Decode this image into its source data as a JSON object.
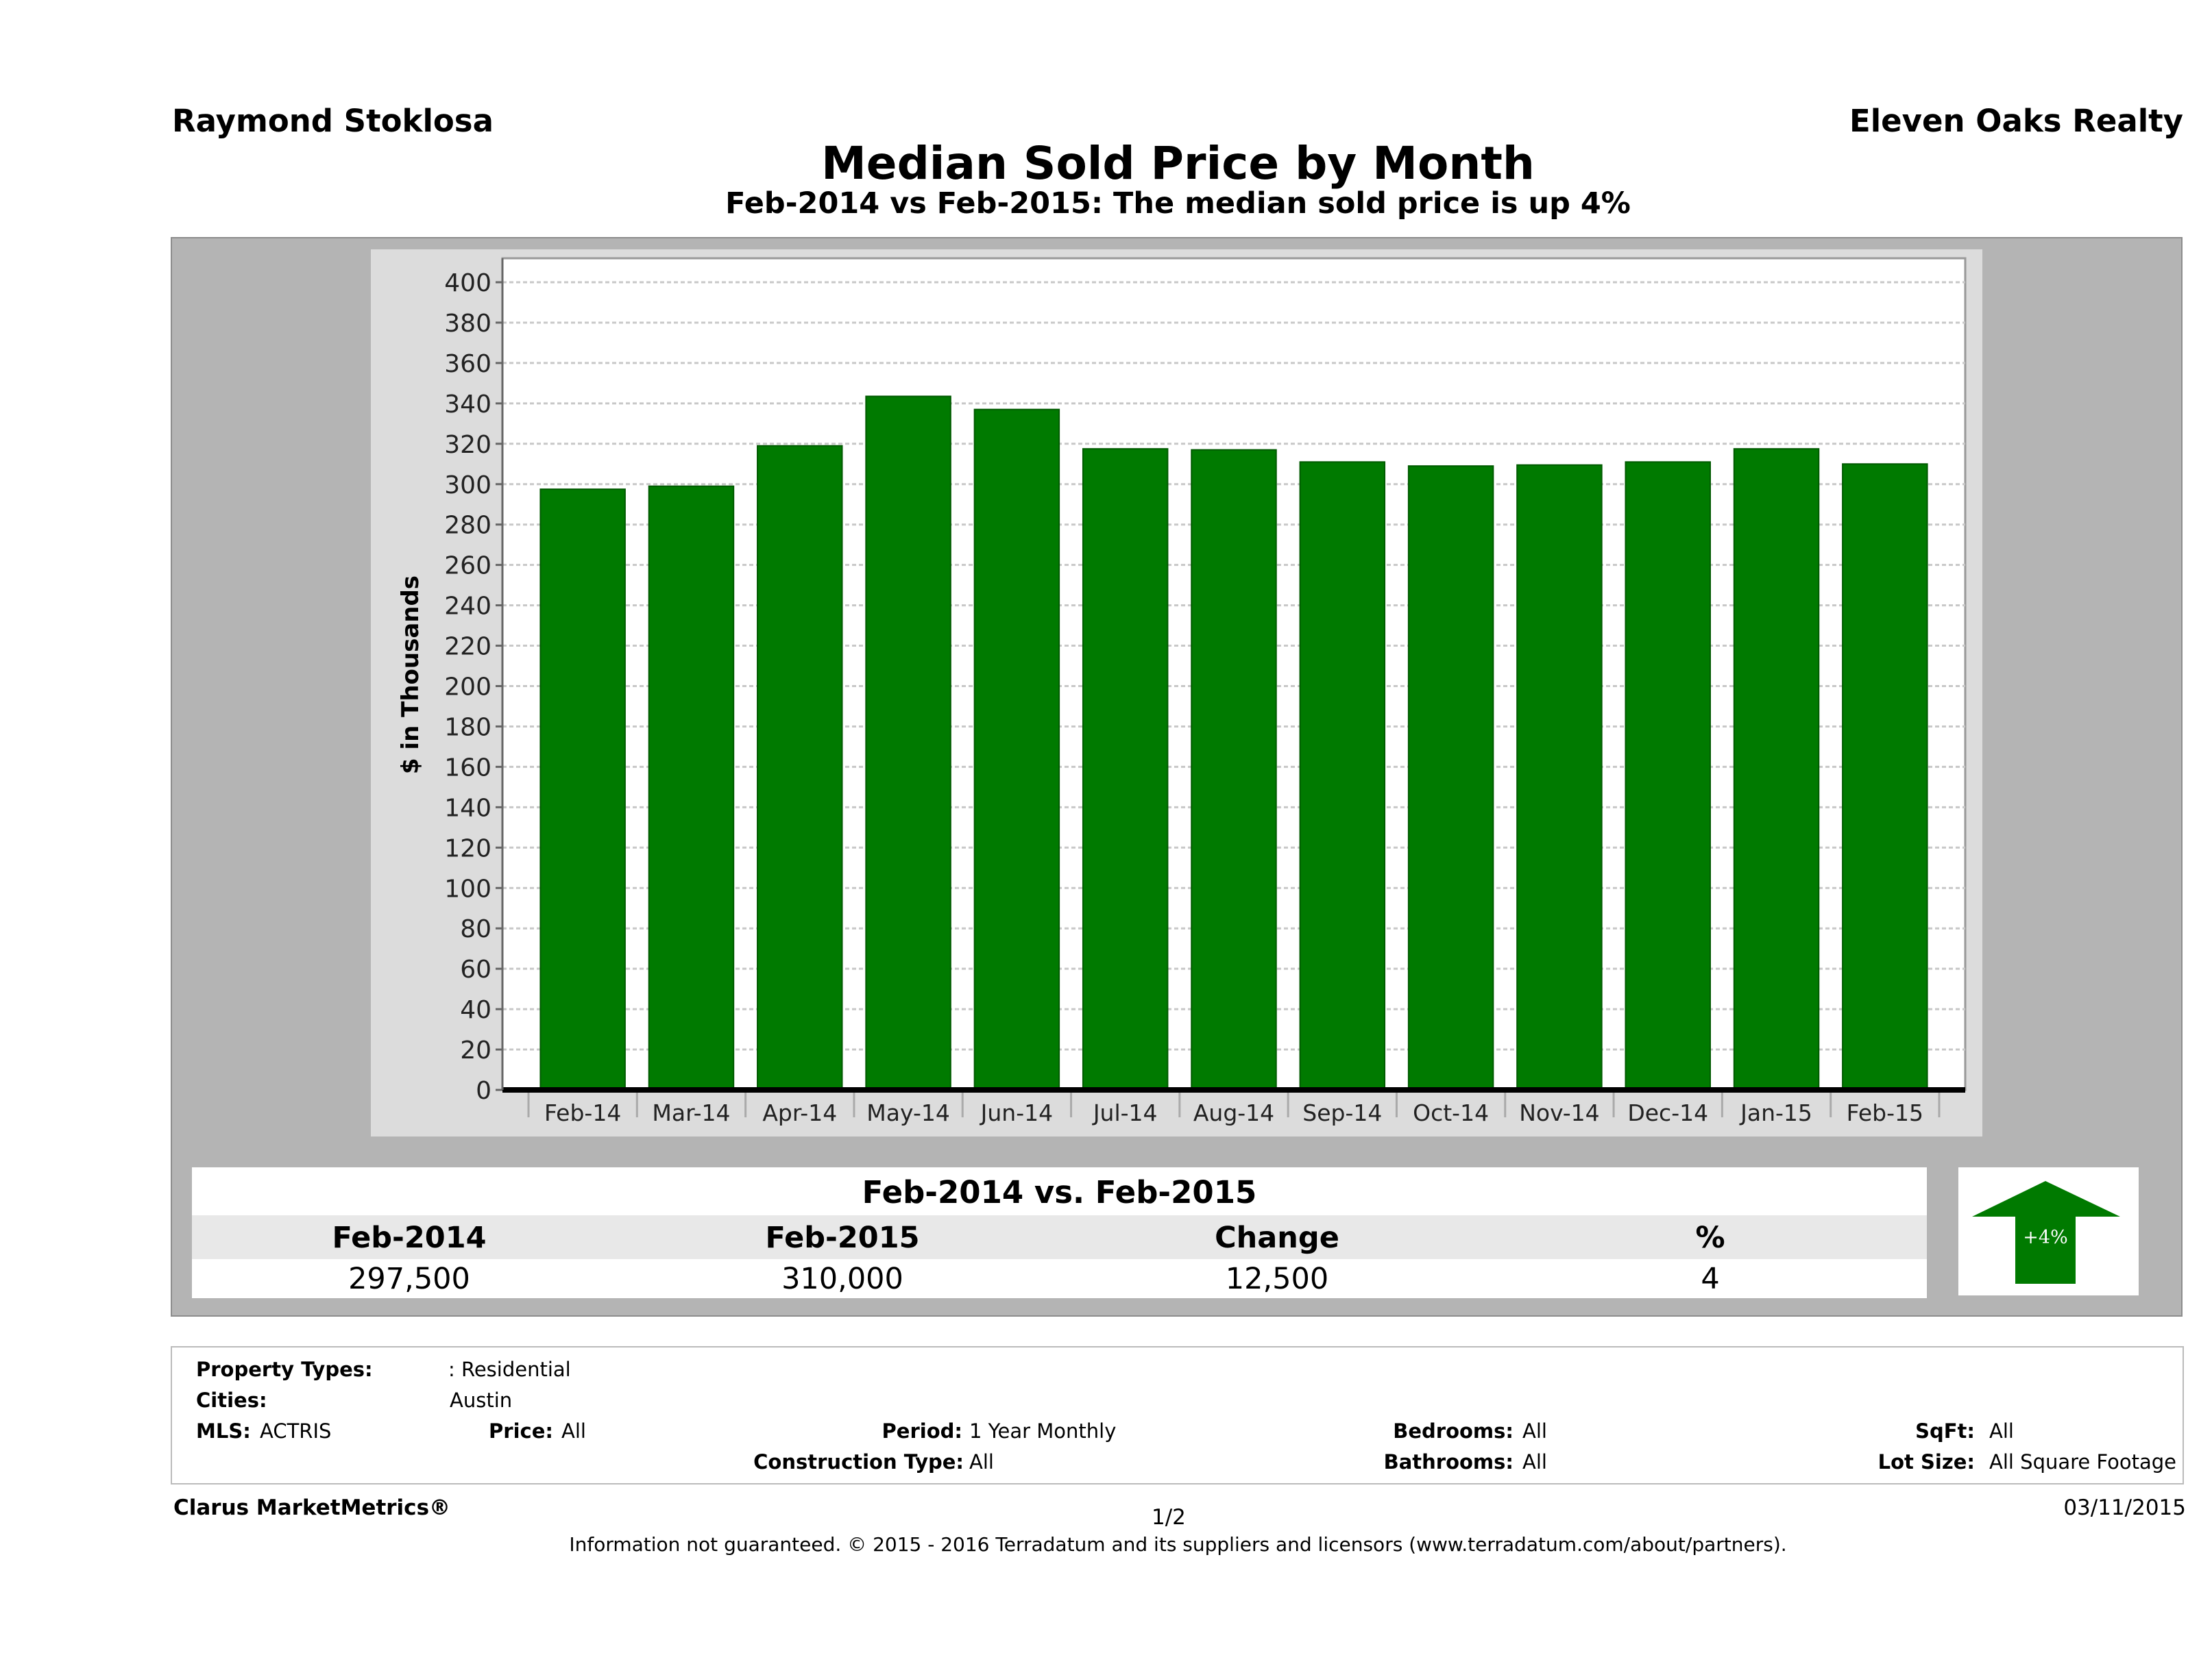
{
  "header": {
    "agent": "Raymond Stoklosa",
    "company": "Eleven Oaks Realty"
  },
  "title": "Median Sold Price by Month",
  "subtitle": "Feb-2014 vs Feb-2015: The median sold price is up 4%",
  "chart_data": {
    "type": "bar",
    "ylabel": "$ in Thousands",
    "xlabel": "",
    "ylim": [
      0,
      400
    ],
    "yticks": [
      "0",
      "20",
      "40",
      "60",
      "80",
      "100",
      "120",
      "140",
      "160",
      "180",
      "200",
      "220",
      "240",
      "260",
      "280",
      "300",
      "320",
      "340",
      "360",
      "380",
      "400"
    ],
    "categories": [
      "Feb-14",
      "Mar-14",
      "Apr-14",
      "May-14",
      "Jun-14",
      "Jul-14",
      "Aug-14",
      "Sep-14",
      "Oct-14",
      "Nov-14",
      "Dec-14",
      "Jan-15",
      "Feb-15"
    ],
    "values": [
      297.5,
      299,
      319,
      343.5,
      337,
      317.5,
      317,
      311,
      309,
      309.5,
      311,
      317.5,
      310
    ],
    "grid": true,
    "bar_color": "#007a00"
  },
  "summary": {
    "heading": "Feb-2014 vs. Feb-2015",
    "columns": [
      "Feb-2014",
      "Feb-2015",
      "Change",
      "%"
    ],
    "values": [
      "297,500",
      "310,000",
      "12,500",
      "4"
    ],
    "badge": "+4%",
    "badge_direction": "up",
    "badge_color": "#007a00"
  },
  "filters": {
    "property_types_label": "Property Types:",
    "property_types": ": Residential",
    "cities_label": "Cities:",
    "cities": "Austin",
    "mls_label": "MLS:",
    "mls": "ACTRIS",
    "price_label": "Price:",
    "price": "All",
    "period_label": "Period:",
    "period": "1 Year Monthly",
    "bedrooms_label": "Bedrooms:",
    "bedrooms": "All",
    "sqft_label": "SqFt:",
    "sqft": "All",
    "construction_label": "Construction Type:",
    "construction": "All",
    "bathrooms_label": "Bathrooms:",
    "bathrooms": "All",
    "lot_label": "Lot Size:",
    "lot": "All Square Footage"
  },
  "footer": {
    "brand": "Clarus MarketMetrics®",
    "page": "1/2",
    "date": "03/11/2015",
    "disclaimer": "Information not guaranteed. © 2015 - 2016 Terradatum and its suppliers and licensors (www.terradatum.com/about/partners)."
  }
}
